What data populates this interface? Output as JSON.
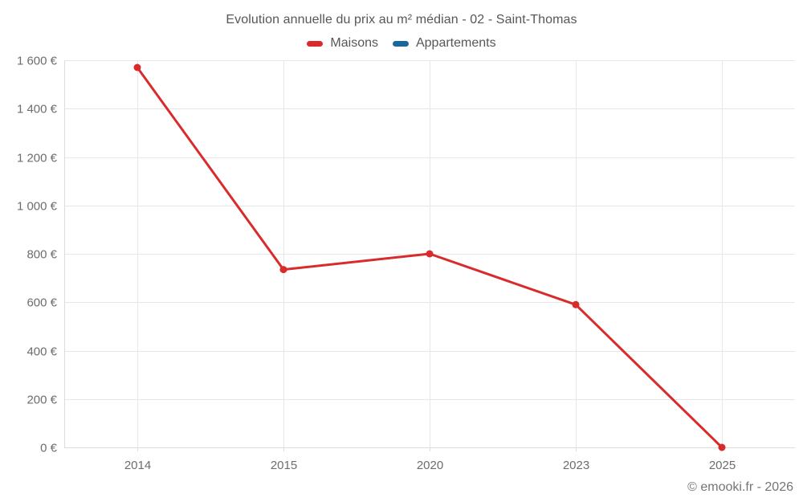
{
  "header": {
    "title": "Evolution annuelle du prix au m² médian - 02 - Saint-Thomas"
  },
  "legend": {
    "items": [
      {
        "label": "Maisons",
        "color": "#d92b2b"
      },
      {
        "label": "Appartements",
        "color": "#17699c"
      }
    ]
  },
  "footer": {
    "copyright": "© emooki.fr - 2026"
  },
  "colors": {
    "grid": "#e7e7e7",
    "axis": "#dcdcdc",
    "tick_text": "#6d6d6d",
    "title_text": "#575757"
  },
  "chart_data": {
    "type": "line",
    "title": "Evolution annuelle du prix au m² médian - 02 - Saint-Thomas",
    "categories": [
      "2014",
      "2015",
      "2020",
      "2023",
      "2025"
    ],
    "series": [
      {
        "name": "Maisons",
        "color": "#d92b2b",
        "values": [
          1570,
          735,
          800,
          590,
          0
        ]
      },
      {
        "name": "Appartements",
        "color": "#17699c",
        "values": []
      }
    ],
    "xlabel": "",
    "ylabel": "",
    "ylim": [
      0,
      1600
    ],
    "ytick_step": 200,
    "ytick_labels": [
      "0 €",
      "200 €",
      "400 €",
      "600 €",
      "800 €",
      "1 000 €",
      "1 200 €",
      "1 400 €",
      "1 600 €"
    ],
    "currency": "€",
    "grid": true,
    "legend_position": "top"
  }
}
